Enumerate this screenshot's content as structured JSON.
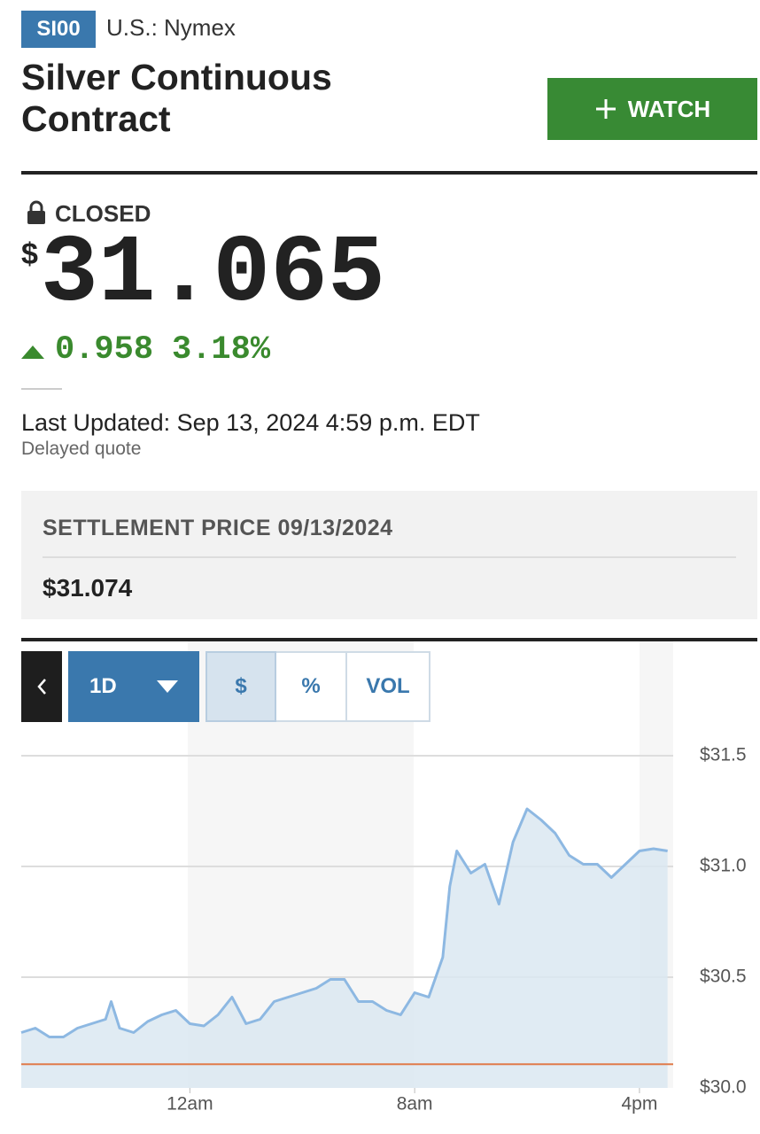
{
  "header": {
    "ticker": "SI00",
    "exchange": "U.S.: Nymex",
    "title": "Silver Continuous Contract",
    "watch": "WATCH"
  },
  "quote": {
    "status": "CLOSED",
    "currency": "$",
    "price": "31.065",
    "change": "0.958",
    "change_percent": "3.18%",
    "last_updated": "Last Updated: Sep 13, 2024 4:59 p.m. EDT",
    "delayed": "Delayed quote"
  },
  "settlement": {
    "label": "SETTLEMENT PRICE 09/13/2024",
    "value": "$31.074"
  },
  "controls": {
    "range": "1D",
    "buttons": [
      "$",
      "%",
      "VOL"
    ]
  },
  "chart_data": {
    "type": "area-line",
    "color": "#8db8e2",
    "fill": "#dbe7f1",
    "x": [
      -6,
      -5.5,
      -5,
      -4.5,
      -4,
      -3.5,
      -3,
      -2.8,
      -2.5,
      -2,
      -1.5,
      -1,
      -0.5,
      0,
      0.5,
      1,
      1.5,
      2,
      2.5,
      3,
      3.5,
      4,
      4.5,
      5,
      5.5,
      6,
      6.5,
      7,
      7.5,
      8,
      8.5,
      9,
      9.25,
      9.5,
      10,
      10.5,
      11,
      11.5,
      12,
      12.5,
      13,
      13.5,
      14,
      14.5,
      15,
      15.5,
      16,
      16.5,
      17
    ],
    "values": [
      30.25,
      30.27,
      30.23,
      30.23,
      30.27,
      30.29,
      30.31,
      30.39,
      30.27,
      30.25,
      30.3,
      30.33,
      30.35,
      30.29,
      30.28,
      30.33,
      30.41,
      30.29,
      30.31,
      30.39,
      30.41,
      30.43,
      30.45,
      30.49,
      30.49,
      30.39,
      30.39,
      30.35,
      30.33,
      30.43,
      30.41,
      30.59,
      30.91,
      31.07,
      30.97,
      31.01,
      30.83,
      31.11,
      31.26,
      31.21,
      31.15,
      31.05,
      31.01,
      31.01,
      30.95,
      31.01,
      31.07,
      31.08,
      31.07
    ],
    "xlim": [
      -6,
      17.2
    ],
    "ylim": [
      30,
      31.6
    ],
    "xticks": [
      {
        "value": 0,
        "label": "12am"
      },
      {
        "value": 8,
        "label": "8am"
      },
      {
        "value": 16,
        "label": "4pm"
      }
    ],
    "yticks": [
      {
        "value": 30,
        "label": "$30.0"
      },
      {
        "value": 30.5,
        "label": "$30.5"
      },
      {
        "value": 31,
        "label": "$31.0"
      },
      {
        "value": 31.5,
        "label": "$31.5"
      }
    ],
    "grid": true,
    "reference_line": 30.107,
    "reference_color": "#e07b4a"
  }
}
